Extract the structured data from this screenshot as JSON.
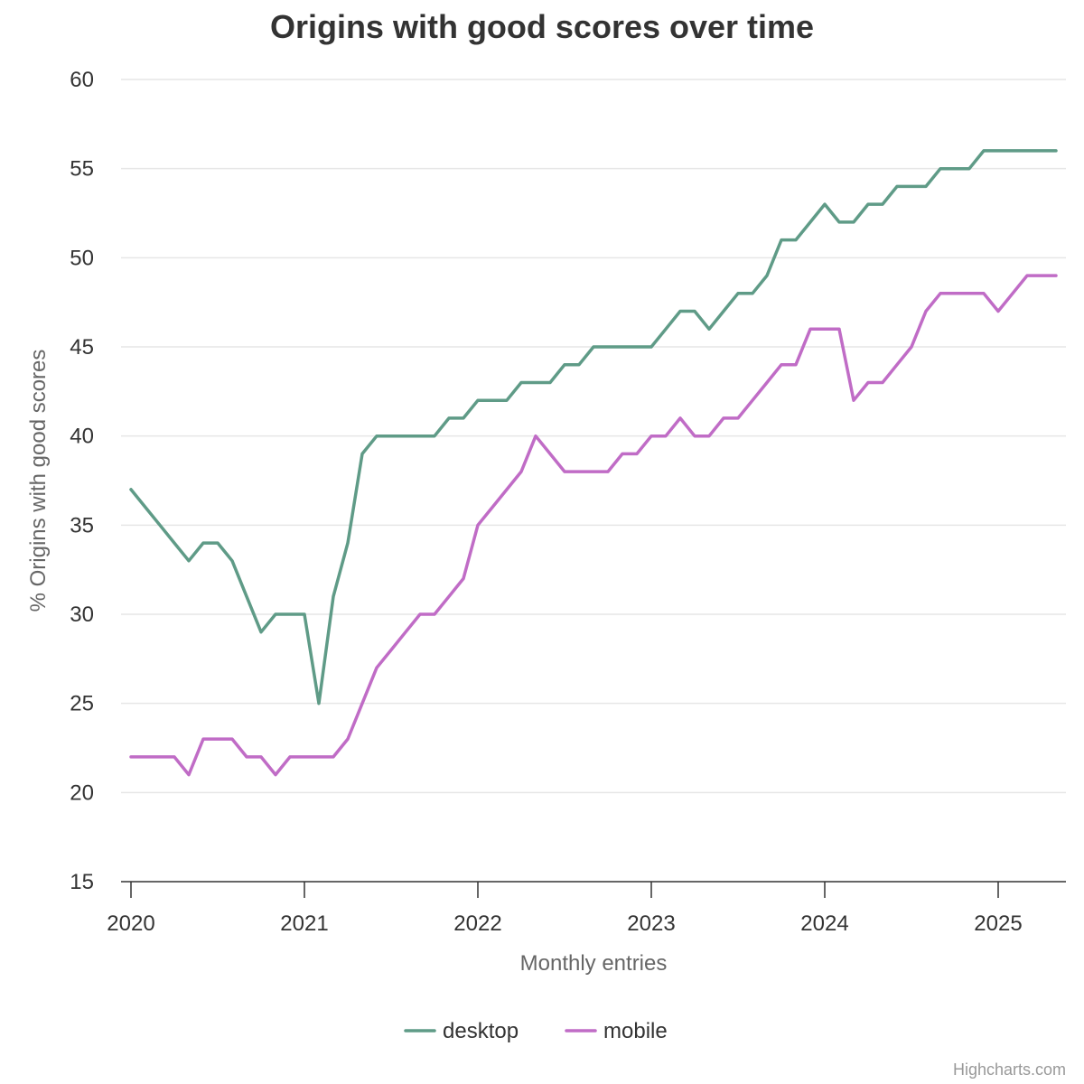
{
  "chart_data": {
    "type": "line",
    "title": "Origins with good scores over time",
    "xlabel": "Monthly entries",
    "ylabel": "% Origins with good scores",
    "ylim": [
      15,
      60
    ],
    "yticks": [
      15,
      20,
      25,
      30,
      35,
      40,
      45,
      50,
      55,
      60
    ],
    "xlim": [
      "2020-01",
      "2025-06"
    ],
    "xticks": [
      "2020",
      "2021",
      "2022",
      "2023",
      "2024",
      "2025"
    ],
    "grid": true,
    "legend_position": "bottom-center",
    "credit": "Highcharts.com",
    "x": [
      "2020-01",
      "2020-02",
      "2020-03",
      "2020-04",
      "2020-05",
      "2020-06",
      "2020-07",
      "2020-08",
      "2020-09",
      "2020-10",
      "2020-11",
      "2020-12",
      "2021-01",
      "2021-02",
      "2021-03",
      "2021-04",
      "2021-05",
      "2021-06",
      "2021-07",
      "2021-08",
      "2021-09",
      "2021-10",
      "2021-11",
      "2021-12",
      "2022-01",
      "2022-02",
      "2022-03",
      "2022-04",
      "2022-05",
      "2022-06",
      "2022-07",
      "2022-08",
      "2022-09",
      "2022-10",
      "2022-11",
      "2022-12",
      "2023-01",
      "2023-02",
      "2023-03",
      "2023-04",
      "2023-05",
      "2023-06",
      "2023-07",
      "2023-08",
      "2023-09",
      "2023-10",
      "2023-11",
      "2023-12",
      "2024-01",
      "2024-02",
      "2024-03",
      "2024-04",
      "2024-05",
      "2024-06",
      "2024-07",
      "2024-08",
      "2024-09",
      "2024-10",
      "2024-11",
      "2024-12",
      "2025-01",
      "2025-02",
      "2025-03",
      "2025-04",
      "2025-05"
    ],
    "series": [
      {
        "name": "desktop",
        "color": "#5f9b87",
        "values": [
          37,
          36,
          35,
          34,
          33,
          34,
          34,
          33,
          31,
          29,
          30,
          30,
          30,
          25,
          31,
          34,
          39,
          40,
          40,
          40,
          40,
          40,
          41,
          41,
          42,
          42,
          42,
          43,
          43,
          43,
          44,
          44,
          45,
          45,
          45,
          45,
          45,
          46,
          47,
          47,
          46,
          47,
          48,
          48,
          49,
          51,
          51,
          52,
          53,
          52,
          52,
          53,
          53,
          54,
          54,
          54,
          55,
          55,
          55,
          56,
          56,
          56,
          56,
          56,
          56
        ]
      },
      {
        "name": "mobile",
        "color": "#c06cc6",
        "values": [
          22,
          22,
          22,
          22,
          21,
          23,
          23,
          23,
          22,
          22,
          21,
          22,
          22,
          22,
          22,
          23,
          25,
          27,
          28,
          29,
          30,
          30,
          31,
          32,
          35,
          36,
          37,
          38,
          40,
          39,
          38,
          38,
          38,
          38,
          39,
          39,
          40,
          40,
          41,
          40,
          40,
          41,
          41,
          42,
          43,
          44,
          44,
          46,
          46,
          46,
          42,
          43,
          43,
          44,
          45,
          47,
          48,
          48,
          48,
          48,
          47,
          48,
          49,
          49,
          49
        ]
      }
    ]
  }
}
